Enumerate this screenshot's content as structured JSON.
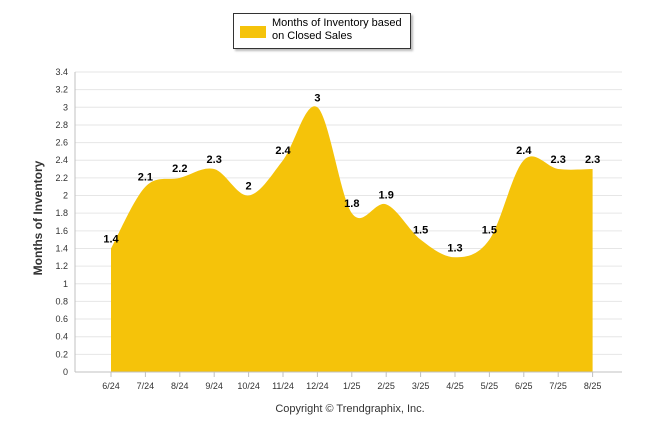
{
  "chart_data": {
    "type": "area",
    "legend_label": "Months of Inventory based on Closed Sales",
    "legend_placement": "top-center",
    "ylabel": "Months of Inventory",
    "categories": [
      "6/24",
      "7/24",
      "8/24",
      "9/24",
      "10/24",
      "11/24",
      "12/24",
      "1/25",
      "2/25",
      "3/25",
      "4/25",
      "5/25",
      "6/25",
      "7/25",
      "8/25"
    ],
    "values": [
      1.4,
      2.1,
      2.2,
      2.3,
      2,
      2.4,
      3,
      1.8,
      1.9,
      1.5,
      1.3,
      1.5,
      2.4,
      2.3,
      2.3
    ],
    "ylim": [
      0,
      3.4
    ],
    "yticks": [
      "0",
      "0.2",
      "0.4",
      "0.6",
      "0.8",
      "1",
      "1.2",
      "1.4",
      "1.6",
      "1.8",
      "2",
      "2.2",
      "2.4",
      "2.6",
      "2.8",
      "3",
      "3.2",
      "3.4"
    ],
    "grid": true,
    "color": "#F5C30A"
  },
  "copyright": "Copyright © Trendgraphix, Inc."
}
